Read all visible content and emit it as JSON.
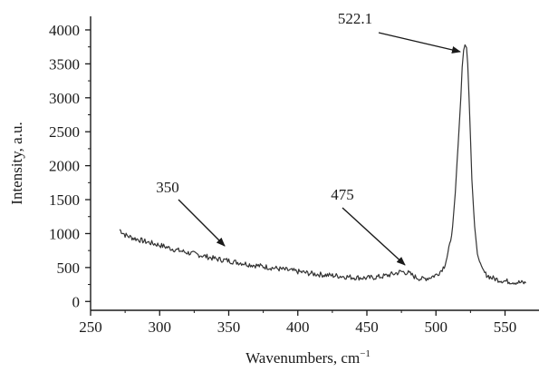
{
  "chart_data": {
    "type": "line",
    "title": "",
    "xlabel": "Wavenumbers, cm",
    "xlabel_sup": "−1",
    "ylabel": "Intensity, a.u.",
    "xlim": [
      250,
      570
    ],
    "ylim": [
      -130,
      4200
    ],
    "xticks": [
      250,
      300,
      350,
      400,
      450,
      500,
      550
    ],
    "yticks": [
      0,
      500,
      1000,
      1500,
      2000,
      2500,
      3000,
      3500,
      4000
    ],
    "xtick_labels": [
      "250",
      "300",
      "350",
      "400",
      "450",
      "500",
      "550"
    ],
    "ytick_labels": [
      "0",
      "500",
      "1000",
      "1500",
      "2000",
      "2500",
      "3000",
      "3500",
      "4000"
    ],
    "grid": false,
    "series": [
      {
        "color": "#333333",
        "x": [
          271,
          275,
          280,
          285,
          290,
          295,
          300,
          305,
          310,
          315,
          320,
          325,
          330,
          335,
          340,
          345,
          350,
          355,
          360,
          365,
          370,
          375,
          380,
          385,
          390,
          395,
          400,
          405,
          410,
          415,
          420,
          425,
          430,
          435,
          440,
          445,
          450,
          455,
          460,
          465,
          470,
          475,
          480,
          485,
          490,
          495,
          500,
          503,
          506,
          508,
          510,
          512,
          514,
          516,
          518,
          519,
          520,
          521,
          522.1,
          523,
          524,
          525,
          526,
          528,
          530,
          533,
          536,
          540,
          545,
          550,
          555,
          560,
          565
        ],
        "y": [
          1060,
          980,
          940,
          910,
          880,
          855,
          830,
          800,
          770,
          745,
          720,
          700,
          680,
          655,
          630,
          615,
          600,
          580,
          565,
          545,
          530,
          515,
          500,
          485,
          470,
          455,
          440,
          425,
          410,
          400,
          390,
          382,
          375,
          365,
          355,
          350,
          345,
          355,
          365,
          385,
          410,
          440,
          420,
          360,
          330,
          350,
          390,
          440,
          520,
          650,
          830,
          1100,
          1600,
          2300,
          3000,
          3450,
          3700,
          3780,
          3740,
          3500,
          3000,
          2400,
          1800,
          1100,
          700,
          480,
          400,
          350,
          320,
          300,
          290,
          280,
          270
        ]
      }
    ],
    "annotations": [
      {
        "text": "350",
        "x": 350,
        "y": 600
      },
      {
        "text": "475",
        "x": 475,
        "y": 440
      },
      {
        "text": "522.1",
        "x": 522.1,
        "y": 3740
      }
    ]
  }
}
